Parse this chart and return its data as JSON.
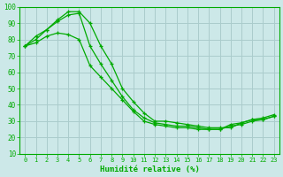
{
  "xlabel": "Humidité relative (%)",
  "ylabel": "",
  "background_color": "#cce8e8",
  "grid_color": "#aacccc",
  "line_color": "#00aa00",
  "xlim": [
    -0.5,
    23.5
  ],
  "ylim": [
    10,
    100
  ],
  "yticks": [
    10,
    20,
    30,
    40,
    50,
    60,
    70,
    80,
    90,
    100
  ],
  "xticks": [
    0,
    1,
    2,
    3,
    4,
    5,
    6,
    7,
    8,
    9,
    10,
    11,
    12,
    13,
    14,
    15,
    16,
    17,
    18,
    19,
    20,
    21,
    22,
    23
  ],
  "series": [
    [
      76,
      82,
      86,
      92,
      97,
      97,
      90,
      76,
      65,
      50,
      42,
      35,
      30,
      30,
      29,
      28,
      27,
      26,
      26,
      26,
      29,
      31,
      32,
      34
    ],
    [
      76,
      80,
      86,
      91,
      95,
      96,
      76,
      65,
      55,
      45,
      37,
      32,
      29,
      28,
      27,
      27,
      26,
      25,
      25,
      28,
      29,
      31,
      31,
      33
    ],
    [
      76,
      78,
      82,
      84,
      83,
      80,
      64,
      57,
      50,
      43,
      36,
      30,
      28,
      27,
      26,
      26,
      25,
      25,
      25,
      27,
      28,
      30,
      31,
      33
    ]
  ]
}
